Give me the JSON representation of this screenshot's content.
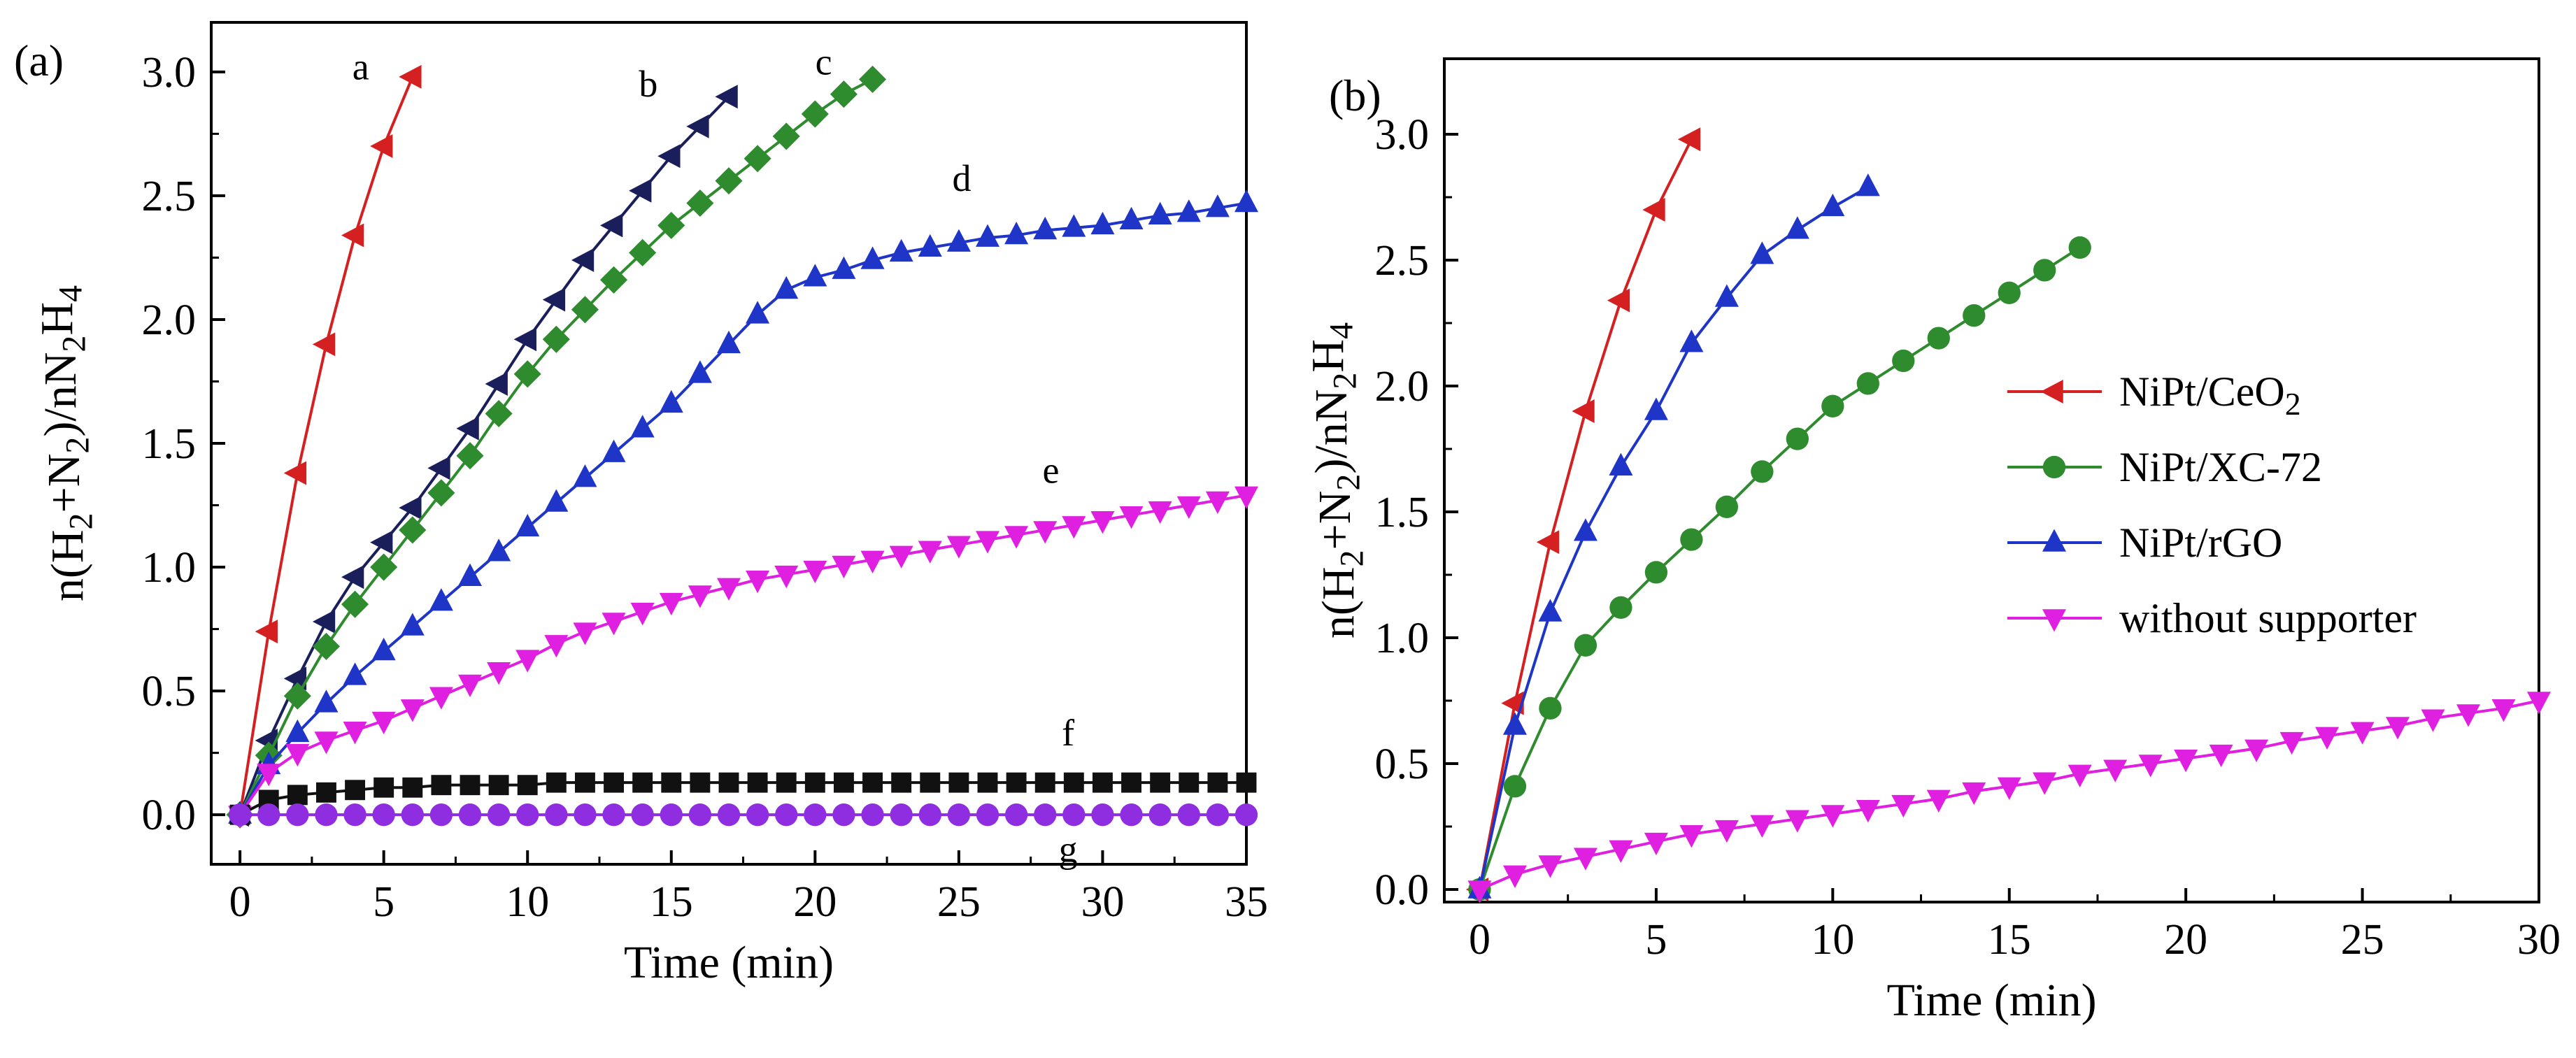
{
  "chart_data": [
    {
      "panel": "(a)",
      "type": "line",
      "xlabel": "Time (min)",
      "ylabel": "n(H2+N2)/nN2H4",
      "xlim": [
        -1,
        35
      ],
      "ylim": [
        -0.2,
        3.2
      ],
      "xticks": [
        "0",
        "5",
        "10",
        "15",
        "20",
        "25",
        "30",
        "35"
      ],
      "yticks": [
        "0.0",
        "0.5",
        "1.0",
        "1.5",
        "2.0",
        "2.5",
        "3.0"
      ],
      "series": [
        {
          "name": "a",
          "label": "a",
          "color": "#d42020",
          "marker": "triangle-left",
          "x": [
            0,
            1,
            2,
            3,
            4,
            5,
            6
          ],
          "y": [
            0,
            0.74,
            1.38,
            1.9,
            2.34,
            2.7,
            2.98
          ]
        },
        {
          "name": "b",
          "label": "b",
          "color": "#1a1f5c",
          "marker": "triangle-left",
          "x": [
            0,
            1,
            2,
            3,
            4,
            5,
            6,
            7,
            8,
            9,
            10,
            11,
            12,
            13,
            14,
            15,
            16,
            17
          ],
          "y": [
            0,
            0.3,
            0.55,
            0.78,
            0.96,
            1.1,
            1.24,
            1.4,
            1.56,
            1.74,
            1.92,
            2.08,
            2.24,
            2.38,
            2.52,
            2.66,
            2.78,
            2.9
          ]
        },
        {
          "name": "c",
          "label": "c",
          "color": "#2e8b2e",
          "marker": "diamond",
          "x": [
            0,
            1,
            2,
            3,
            4,
            5,
            6,
            7,
            8,
            9,
            10,
            11,
            12,
            13,
            14,
            15,
            16,
            17,
            18,
            19,
            20,
            21,
            22
          ],
          "y": [
            0,
            0.24,
            0.48,
            0.68,
            0.85,
            1.0,
            1.15,
            1.3,
            1.45,
            1.62,
            1.78,
            1.92,
            2.04,
            2.16,
            2.27,
            2.38,
            2.47,
            2.56,
            2.65,
            2.74,
            2.83,
            2.91,
            2.97
          ]
        },
        {
          "name": "d",
          "label": "d",
          "color": "#1f35c8",
          "marker": "triangle-up",
          "x": [
            0,
            1,
            2,
            3,
            4,
            5,
            6,
            7,
            8,
            9,
            10,
            11,
            12,
            13,
            14,
            15,
            16,
            17,
            18,
            19,
            20,
            21,
            22,
            23,
            24,
            25,
            26,
            27,
            28,
            29,
            30,
            31,
            32,
            33,
            34,
            35
          ],
          "y": [
            0,
            0.2,
            0.33,
            0.45,
            0.56,
            0.66,
            0.76,
            0.86,
            0.96,
            1.06,
            1.16,
            1.26,
            1.36,
            1.46,
            1.56,
            1.66,
            1.78,
            1.9,
            2.02,
            2.12,
            2.17,
            2.2,
            2.24,
            2.27,
            2.29,
            2.31,
            2.33,
            2.34,
            2.36,
            2.37,
            2.38,
            2.4,
            2.42,
            2.43,
            2.45,
            2.47
          ]
        },
        {
          "name": "e",
          "label": "e",
          "color": "#e020e0",
          "marker": "triangle-down",
          "x": [
            0,
            1,
            2,
            3,
            4,
            5,
            6,
            7,
            8,
            9,
            10,
            11,
            12,
            13,
            14,
            15,
            16,
            17,
            18,
            19,
            20,
            21,
            22,
            23,
            24,
            25,
            26,
            27,
            28,
            29,
            30,
            31,
            32,
            33,
            34,
            35
          ],
          "y": [
            0,
            0.17,
            0.25,
            0.3,
            0.34,
            0.38,
            0.43,
            0.48,
            0.53,
            0.58,
            0.63,
            0.69,
            0.74,
            0.78,
            0.82,
            0.86,
            0.89,
            0.92,
            0.95,
            0.97,
            0.99,
            1.01,
            1.03,
            1.05,
            1.07,
            1.09,
            1.11,
            1.13,
            1.15,
            1.17,
            1.19,
            1.21,
            1.23,
            1.25,
            1.27,
            1.29
          ]
        },
        {
          "name": "f",
          "label": "f",
          "color": "#111111",
          "marker": "square",
          "x": [
            0,
            1,
            2,
            3,
            4,
            5,
            6,
            7,
            8,
            9,
            10,
            11,
            12,
            13,
            14,
            15,
            16,
            17,
            18,
            19,
            20,
            21,
            22,
            23,
            24,
            25,
            26,
            27,
            28,
            29,
            30,
            31,
            32,
            33,
            34,
            35
          ],
          "y": [
            0,
            0.06,
            0.08,
            0.09,
            0.1,
            0.11,
            0.11,
            0.12,
            0.12,
            0.12,
            0.12,
            0.13,
            0.13,
            0.13,
            0.13,
            0.13,
            0.13,
            0.13,
            0.13,
            0.13,
            0.13,
            0.13,
            0.13,
            0.13,
            0.13,
            0.13,
            0.13,
            0.13,
            0.13,
            0.13,
            0.13,
            0.13,
            0.13,
            0.13,
            0.13,
            0.13
          ]
        },
        {
          "name": "g",
          "label": "g",
          "color": "#8e2ee0",
          "marker": "circle",
          "x": [
            0,
            1,
            2,
            3,
            4,
            5,
            6,
            7,
            8,
            9,
            10,
            11,
            12,
            13,
            14,
            15,
            16,
            17,
            18,
            19,
            20,
            21,
            22,
            23,
            24,
            25,
            26,
            27,
            28,
            29,
            30,
            31,
            32,
            33,
            34,
            35
          ],
          "y": [
            0,
            0,
            0,
            0,
            0,
            0,
            0,
            0,
            0,
            0,
            0,
            0,
            0,
            0,
            0,
            0,
            0,
            0,
            0,
            0,
            0,
            0,
            0,
            0,
            0,
            0,
            0,
            0,
            0,
            0,
            0,
            0,
            0,
            0,
            0,
            0
          ]
        }
      ]
    },
    {
      "panel": "(b)",
      "type": "line",
      "xlabel": "Time (min)",
      "ylabel": "n(H2+N2)/nN2H4",
      "xlim": [
        -1,
        30
      ],
      "ylim": [
        -0.05,
        3.3
      ],
      "xticks": [
        "0",
        "5",
        "10",
        "15",
        "20",
        "25",
        "30"
      ],
      "yticks": [
        "0.0",
        "0.5",
        "1.0",
        "1.5",
        "2.0",
        "2.5",
        "3.0"
      ],
      "legend_position": "center-right",
      "series": [
        {
          "name": "NiPt/CeO2",
          "color": "#d42020",
          "marker": "triangle-left",
          "x": [
            0,
            1,
            2,
            3,
            4,
            5,
            6
          ],
          "y": [
            0,
            0.74,
            1.38,
            1.9,
            2.34,
            2.7,
            2.98
          ]
        },
        {
          "name": "NiPt/XC-72",
          "color": "#2e8b2e",
          "marker": "circle",
          "x": [
            0,
            1,
            2,
            3,
            4,
            5,
            6,
            7,
            8,
            9,
            10,
            11,
            12,
            13,
            14,
            15,
            16,
            17
          ],
          "y": [
            0,
            0.41,
            0.72,
            0.97,
            1.12,
            1.26,
            1.39,
            1.52,
            1.66,
            1.79,
            1.92,
            2.01,
            2.1,
            2.19,
            2.28,
            2.37,
            2.46,
            2.55
          ]
        },
        {
          "name": "NiPt/rGO",
          "color": "#1f35c8",
          "marker": "triangle-up",
          "x": [
            0,
            1,
            2,
            3,
            4,
            5,
            6,
            7,
            8,
            9,
            10,
            11
          ],
          "y": [
            0,
            0.65,
            1.1,
            1.42,
            1.68,
            1.9,
            2.17,
            2.35,
            2.52,
            2.62,
            2.71,
            2.79
          ]
        },
        {
          "name": "without supporter",
          "color": "#e020e0",
          "marker": "triangle-down",
          "x": [
            0,
            1,
            2,
            3,
            4,
            5,
            6,
            7,
            8,
            9,
            10,
            11,
            12,
            13,
            14,
            15,
            16,
            17,
            18,
            19,
            20,
            21,
            22,
            23,
            24,
            25,
            26,
            27,
            28,
            29,
            30
          ],
          "y": [
            0,
            0.06,
            0.1,
            0.13,
            0.16,
            0.19,
            0.22,
            0.24,
            0.26,
            0.28,
            0.3,
            0.32,
            0.34,
            0.36,
            0.39,
            0.41,
            0.43,
            0.46,
            0.48,
            0.5,
            0.52,
            0.54,
            0.56,
            0.59,
            0.61,
            0.63,
            0.65,
            0.68,
            0.7,
            0.72,
            0.75
          ]
        }
      ]
    }
  ]
}
